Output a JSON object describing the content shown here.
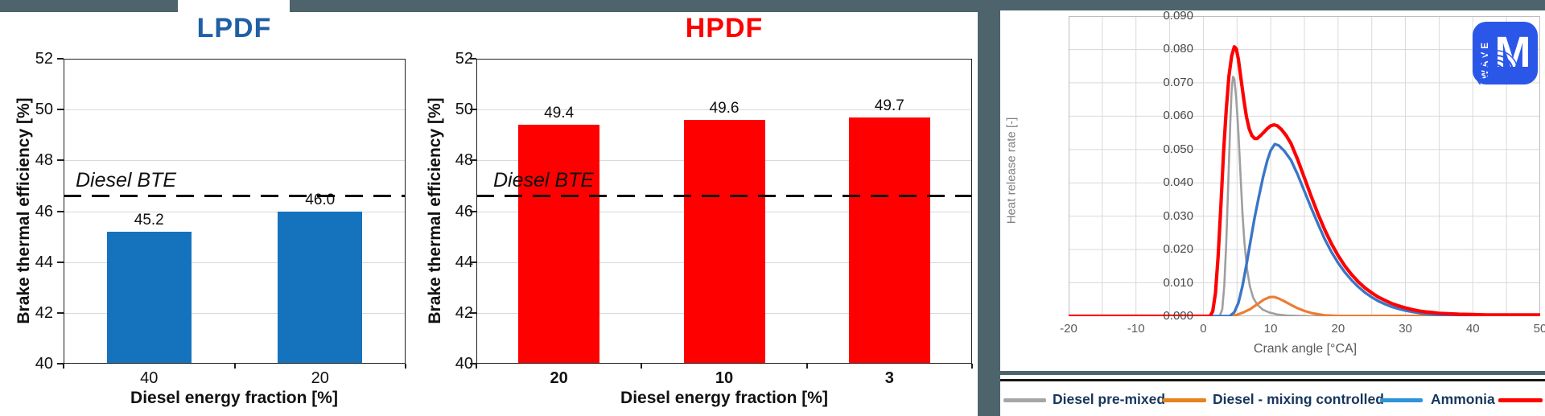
{
  "colors": {
    "background": "#4d646c",
    "panel": "#ffffff",
    "grid": "#d9d9d9",
    "axis_dark": "#1f1f1f",
    "legend_text": "#17365d"
  },
  "legend": {
    "position": "bottom",
    "items": [
      {
        "label": "Diesel pre-mixed",
        "color": "#a6a6a6"
      },
      {
        "label": "Diesel - mixing controlled",
        "color": "#e8821e"
      },
      {
        "label": "Ammonia",
        "color": "#2e93d8"
      },
      {
        "label": "",
        "color": "#fe0000"
      }
    ]
  },
  "logo": {
    "vertical_text": "WAVE",
    "glyph": "M",
    "background": "#2b57e9"
  },
  "chart_data": [
    {
      "id": "lpdf",
      "type": "bar",
      "title": "LPDF",
      "title_color": "#1f5fa5",
      "categories": [
        "40",
        "20"
      ],
      "values": [
        45.2,
        46.0
      ],
      "value_labels": [
        "45.2",
        "46.0"
      ],
      "bar_color": "#1573bd",
      "xlabel": "Diesel energy fraction [%]",
      "ylabel": "Brake thermal efficiency [%]",
      "ylim": [
        40,
        52
      ],
      "ytick_step": 2,
      "yticks": [
        "52",
        "50",
        "48",
        "46",
        "44",
        "42",
        "40"
      ],
      "grid": true,
      "ref_line": {
        "label": "Diesel BTE",
        "value": 46.6
      }
    },
    {
      "id": "hpdf",
      "type": "bar",
      "title": "HPDF",
      "title_color": "#fe0000",
      "categories": [
        "20",
        "10",
        "3"
      ],
      "values": [
        49.4,
        49.6,
        49.7
      ],
      "value_labels": [
        "49.4",
        "49.6",
        "49.7"
      ],
      "bar_color": "#fe0000",
      "xlabel": "Diesel energy fraction [%]",
      "ylabel": "Brake thermal efficiency [%]",
      "ylim": [
        40,
        52
      ],
      "ytick_step": 2,
      "yticks": [
        "52",
        "50",
        "48",
        "46",
        "44",
        "42",
        "40"
      ],
      "grid": true,
      "ref_line": {
        "label": "Diesel BTE",
        "value": 46.6
      }
    },
    {
      "id": "hrr",
      "type": "line",
      "xlabel": "Crank angle [°CA]",
      "ylabel": "Heat release rate [-]",
      "xlim": [
        -20,
        50
      ],
      "ylim": [
        0,
        0.09
      ],
      "x_grid_step": 5,
      "y_grid_step": 0.01,
      "grid": true,
      "xtick_labels": [
        "-20",
        "-10",
        "0",
        "10",
        "20",
        "30",
        "40",
        "50"
      ],
      "xticks": [
        -20,
        -10,
        0,
        10,
        20,
        30,
        40,
        50
      ],
      "ytick_labels": [
        "0.090",
        "0.080",
        "0.070",
        "0.060",
        "0.050",
        "0.040",
        "0.030",
        "0.020",
        "0.010",
        "0.000"
      ],
      "series": [
        {
          "name": "Diesel pre-mixed",
          "color": "#9f9f9f",
          "width": 2.6,
          "points": [
            [
              -20,
              0
            ],
            [
              2.4,
              0
            ],
            [
              2.8,
              0.002
            ],
            [
              3.1,
              0.009
            ],
            [
              3.4,
              0.022
            ],
            [
              3.7,
              0.04
            ],
            [
              4.0,
              0.058
            ],
            [
              4.2,
              0.068
            ],
            [
              4.4,
              0.0718
            ],
            [
              4.6,
              0.0712
            ],
            [
              4.9,
              0.065
            ],
            [
              5.2,
              0.055
            ],
            [
              5.5,
              0.043
            ],
            [
              5.8,
              0.031
            ],
            [
              6.1,
              0.022
            ],
            [
              6.5,
              0.014
            ],
            [
              6.9,
              0.009
            ],
            [
              7.4,
              0.0055
            ],
            [
              8.0,
              0.0035
            ],
            [
              8.8,
              0.002
            ],
            [
              9.8,
              0.0011
            ],
            [
              11,
              0.0005
            ],
            [
              12.5,
              0.0002
            ],
            [
              14,
              0.0001
            ],
            [
              16,
              0
            ],
            [
              50,
              0
            ]
          ]
        },
        {
          "name": "Diesel - mixing controlled",
          "color": "#ed7d31",
          "width": 3.2,
          "points": [
            [
              -20,
              0
            ],
            [
              3.8,
              0
            ],
            [
              5,
              0.0004
            ],
            [
              6,
              0.0012
            ],
            [
              7,
              0.0022
            ],
            [
              8,
              0.0036
            ],
            [
              9,
              0.005
            ],
            [
              9.8,
              0.0057
            ],
            [
              10.5,
              0.0058
            ],
            [
              11.2,
              0.0053
            ],
            [
              12,
              0.0045
            ],
            [
              13,
              0.0034
            ],
            [
              14,
              0.0024
            ],
            [
              15,
              0.0016
            ],
            [
              16,
              0.001
            ],
            [
              17,
              0.0006
            ],
            [
              18,
              0.0003
            ],
            [
              19,
              0.0002
            ],
            [
              20,
              0.0001
            ],
            [
              50,
              0.0001
            ]
          ]
        },
        {
          "name": "Ammonia",
          "color": "#3a76c8",
          "width": 3.4,
          "points": [
            [
              -20,
              0
            ],
            [
              3.9,
              0
            ],
            [
              4.6,
              0.0012
            ],
            [
              5.2,
              0.004
            ],
            [
              5.8,
              0.009
            ],
            [
              6.4,
              0.0155
            ],
            [
              7.0,
              0.0225
            ],
            [
              7.6,
              0.0295
            ],
            [
              8.2,
              0.0355
            ],
            [
              8.9,
              0.042
            ],
            [
              9.5,
              0.0468
            ],
            [
              10.0,
              0.0497
            ],
            [
              10.6,
              0.0516
            ],
            [
              11.2,
              0.0512
            ],
            [
              12,
              0.0496
            ],
            [
              13,
              0.0468
            ],
            [
              14,
              0.0425
            ],
            [
              15,
              0.0375
            ],
            [
              16,
              0.0325
            ],
            [
              17,
              0.0278
            ],
            [
              18,
              0.0232
            ],
            [
              19,
              0.0193
            ],
            [
              20,
              0.016
            ],
            [
              21,
              0.0132
            ],
            [
              22,
              0.0108
            ],
            [
              23,
              0.0088
            ],
            [
              24,
              0.0071
            ],
            [
              25,
              0.0057
            ],
            [
              26,
              0.0045
            ],
            [
              27,
              0.0036
            ],
            [
              28,
              0.0028
            ],
            [
              29,
              0.0022
            ],
            [
              30,
              0.0017
            ],
            [
              31,
              0.0013
            ],
            [
              32,
              0.001
            ],
            [
              33,
              0.0007
            ],
            [
              34,
              0.0005
            ],
            [
              35,
              0.0004
            ],
            [
              36,
              0.0003
            ],
            [
              38,
              0.0002
            ],
            [
              40,
              0.0001
            ],
            [
              50,
              0.0001
            ]
          ]
        },
        {
          "name": "",
          "color": "#fe0000",
          "width": 4.2,
          "points": [
            [
              -20,
              0
            ],
            [
              1.0,
              0
            ],
            [
              1.4,
              0.0015
            ],
            [
              1.8,
              0.007
            ],
            [
              2.2,
              0.018
            ],
            [
              2.6,
              0.033
            ],
            [
              3.0,
              0.049
            ],
            [
              3.4,
              0.062
            ],
            [
              3.8,
              0.072
            ],
            [
              4.2,
              0.078
            ],
            [
              4.6,
              0.0808
            ],
            [
              4.9,
              0.0802
            ],
            [
              5.2,
              0.077
            ],
            [
              5.6,
              0.071
            ],
            [
              6.0,
              0.065
            ],
            [
              6.4,
              0.0598
            ],
            [
              6.8,
              0.0562
            ],
            [
              7.2,
              0.0542
            ],
            [
              7.6,
              0.0533
            ],
            [
              8.0,
              0.0533
            ],
            [
              8.5,
              0.0542
            ],
            [
              9.0,
              0.0552
            ],
            [
              9.5,
              0.0563
            ],
            [
              10.0,
              0.0571
            ],
            [
              10.5,
              0.0574
            ],
            [
              11.0,
              0.0571
            ],
            [
              11.6,
              0.056
            ],
            [
              12.3,
              0.0542
            ],
            [
              13,
              0.0518
            ],
            [
              14,
              0.047
            ],
            [
              15,
              0.0415
            ],
            [
              16,
              0.036
            ],
            [
              17,
              0.0308
            ],
            [
              18,
              0.026
            ],
            [
              19,
              0.0218
            ],
            [
              20,
              0.0182
            ],
            [
              21,
              0.0151
            ],
            [
              22,
              0.0125
            ],
            [
              23,
              0.0103
            ],
            [
              24,
              0.0085
            ],
            [
              25,
              0.007
            ],
            [
              26,
              0.0057
            ],
            [
              27,
              0.0047
            ],
            [
              28,
              0.0038
            ],
            [
              29,
              0.0031
            ],
            [
              30,
              0.0025
            ],
            [
              31,
              0.002
            ],
            [
              32,
              0.0016
            ],
            [
              33,
              0.0013
            ],
            [
              34,
              0.0011
            ],
            [
              35,
              0.0009
            ],
            [
              36,
              0.0008
            ],
            [
              37,
              0.0007
            ],
            [
              38,
              0.0006
            ],
            [
              40,
              0.0005
            ],
            [
              42,
              0.0004
            ],
            [
              45,
              0.0004
            ],
            [
              50,
              0.0004
            ]
          ]
        }
      ]
    }
  ]
}
